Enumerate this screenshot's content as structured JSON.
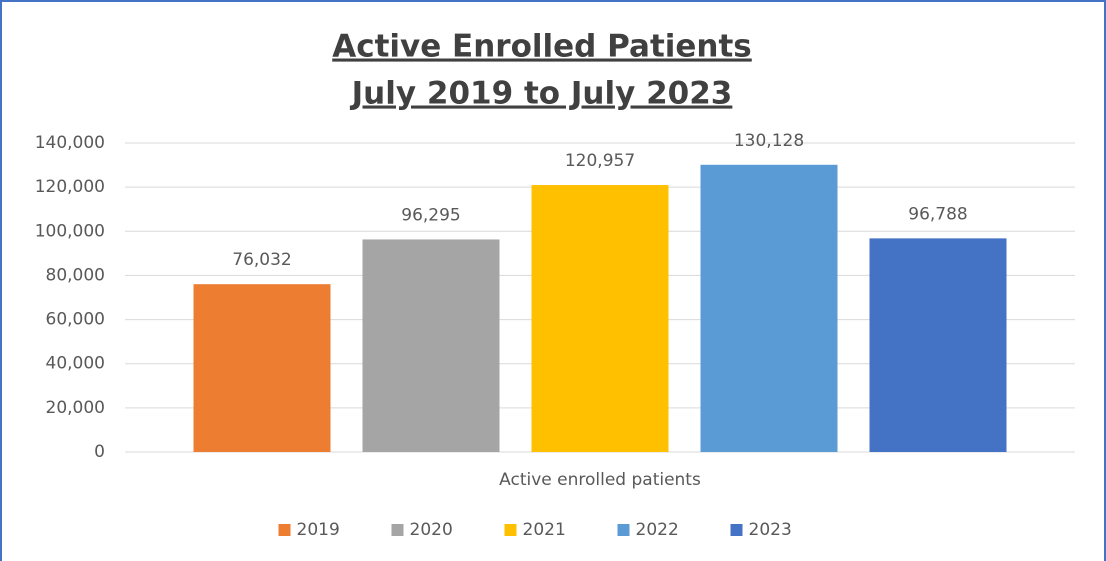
{
  "chart_data": {
    "type": "bar",
    "title": "Active Enrolled Patients",
    "subtitle": "July 2019 to July 2023",
    "categories": [
      "Active enrolled patients"
    ],
    "series": [
      {
        "name": "2019",
        "color": "#ed7d31",
        "values": [
          76032
        ],
        "value_labels": [
          "76,032"
        ]
      },
      {
        "name": "2020",
        "color": "#a5a5a5",
        "values": [
          96295
        ],
        "value_labels": [
          "96,295"
        ]
      },
      {
        "name": "2021",
        "color": "#ffc000",
        "values": [
          120957
        ],
        "value_labels": [
          "120,957"
        ]
      },
      {
        "name": "2022",
        "color": "#5b9bd5",
        "values": [
          130128
        ],
        "value_labels": [
          "130,128"
        ]
      },
      {
        "name": "2023",
        "color": "#4472c4",
        "values": [
          96788
        ],
        "value_labels": [
          "96,788"
        ]
      }
    ],
    "ylim": [
      0,
      140000
    ],
    "yticks": [
      0,
      {
        "value": 20000,
        "label": "20,000"
      },
      {
        "value": 40000,
        "label": "40,000"
      },
      {
        "value": 60000,
        "label": "60,000"
      },
      {
        "value": 80000,
        "label": "80,000"
      },
      {
        "value": 100000,
        "label": "100,000"
      },
      {
        "value": 120000,
        "label": "120,000"
      },
      {
        "value": 140000,
        "label": "140,000"
      }
    ],
    "grid": true,
    "legend": "bottom"
  }
}
